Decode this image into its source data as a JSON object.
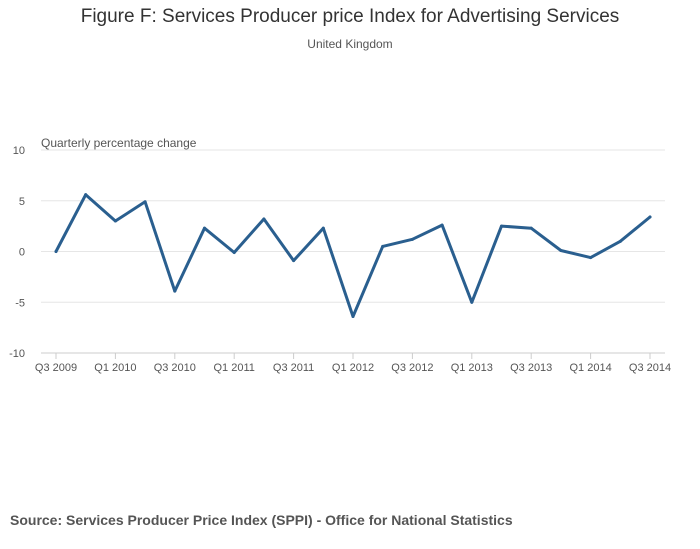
{
  "title": "Figure F: Services Producer price Index for Advertising Services",
  "subtitle": "United Kingdom",
  "source": "Source: Services Producer Price Index (SPPI) - Office for National Statistics",
  "chart_data": {
    "type": "line",
    "title": "Figure F: Services Producer price Index for Advertising Services",
    "subtitle": "United Kingdom",
    "ylabel": "Quarterly percentage change",
    "xlabel": "",
    "ylim": [
      -10,
      10
    ],
    "yticks": [
      10,
      5,
      0,
      -5,
      -10
    ],
    "ytick_labels": [
      "10",
      "5",
      "0",
      "-5",
      "-10"
    ],
    "grid": true,
    "line_color": "#2a5f8f",
    "categories": [
      "Q3 2009",
      "Q4 2009",
      "Q1 2010",
      "Q2 2010",
      "Q3 2010",
      "Q4 2010",
      "Q1 2011",
      "Q2 2011",
      "Q3 2011",
      "Q4 2011",
      "Q1 2012",
      "Q2 2012",
      "Q3 2012",
      "Q4 2012",
      "Q1 2013",
      "Q2 2013",
      "Q3 2013",
      "Q4 2013",
      "Q1 2014",
      "Q2 2014",
      "Q3 2014"
    ],
    "xtick_labels": [
      "Q3 2009",
      "Q1 2010",
      "Q3 2010",
      "Q1 2011",
      "Q3 2011",
      "Q1 2012",
      "Q3 2012",
      "Q1 2013",
      "Q3 2013",
      "Q1 2014",
      "Q3 2014"
    ],
    "series": [
      {
        "values": [
          0,
          5.6,
          3.0,
          4.9,
          -3.9,
          2.3,
          -0.1,
          3.2,
          -0.9,
          2.3,
          -6.4,
          0.5,
          1.2,
          2.6,
          -5.0,
          2.5,
          2.3,
          0.1,
          -0.6,
          1.0,
          3.4
        ]
      }
    ]
  }
}
